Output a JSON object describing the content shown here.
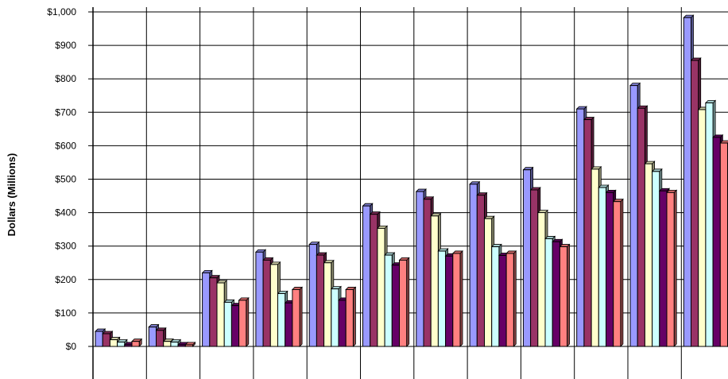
{
  "chart_data": {
    "type": "bar",
    "title": "",
    "xlabel": "",
    "ylabel": "Dollars (Millions)",
    "ylim": [
      0,
      1000
    ],
    "y_ticks": [
      "$0",
      "$100",
      "$200",
      "$300",
      "$400",
      "$500",
      "$600",
      "$700",
      "$800",
      "$900",
      "$1,000"
    ],
    "categories": [
      "",
      "",
      "",
      "",
      "",
      "",
      "",
      "",
      "",
      "",
      "",
      ""
    ],
    "grid": true,
    "legend": "none",
    "bar_style": "3d",
    "series": [
      {
        "color": "#9999FF",
        "values": [
          45,
          58,
          220,
          282,
          305,
          420,
          463,
          485,
          528,
          710,
          780,
          983
        ]
      },
      {
        "color": "#993366",
        "values": [
          38,
          48,
          205,
          258,
          273,
          395,
          440,
          452,
          468,
          678,
          712,
          855
        ]
      },
      {
        "color": "#FFFFCC",
        "values": [
          20,
          15,
          190,
          245,
          250,
          353,
          390,
          382,
          400,
          530,
          546,
          708
        ]
      },
      {
        "color": "#CCFFFF",
        "values": [
          13,
          13,
          132,
          158,
          172,
          273,
          285,
          298,
          322,
          475,
          523,
          728
        ]
      },
      {
        "color": "#660066",
        "values": [
          5,
          5,
          122,
          130,
          138,
          243,
          270,
          272,
          313,
          460,
          465,
          625
        ]
      },
      {
        "color": "#FF8080",
        "values": [
          15,
          5,
          138,
          170,
          170,
          258,
          278,
          278,
          298,
          433,
          460,
          608
        ]
      }
    ]
  }
}
